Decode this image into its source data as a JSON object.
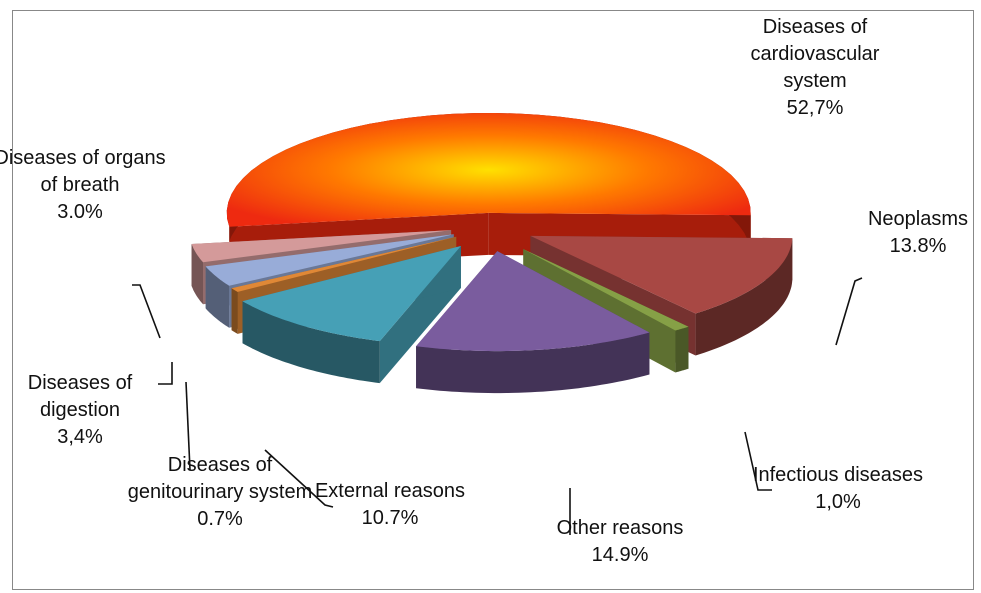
{
  "chart_data": {
    "type": "pie3d",
    "categories": [
      "Diseases of cardiovascular system",
      "Neoplasms",
      "Infectious diseases",
      "Other reasons",
      "External reasons",
      "Diseases of genitourinary system",
      "Diseases of digestion",
      "Diseases of organs of breath"
    ],
    "values": [
      52.7,
      13.8,
      1.0,
      14.9,
      10.7,
      0.7,
      3.4,
      3.0
    ],
    "value_labels": [
      "52,7%",
      "13.8%",
      "1,0%",
      "14.9%",
      "10.7%",
      "0.7%",
      "3,4%",
      "3.0%"
    ],
    "colors": [
      "#ee2a10",
      "#a84844",
      "#86a046",
      "#7a5c9e",
      "#46a0b6",
      "#e08836",
      "#98acd8",
      "#d49a9a"
    ]
  }
}
